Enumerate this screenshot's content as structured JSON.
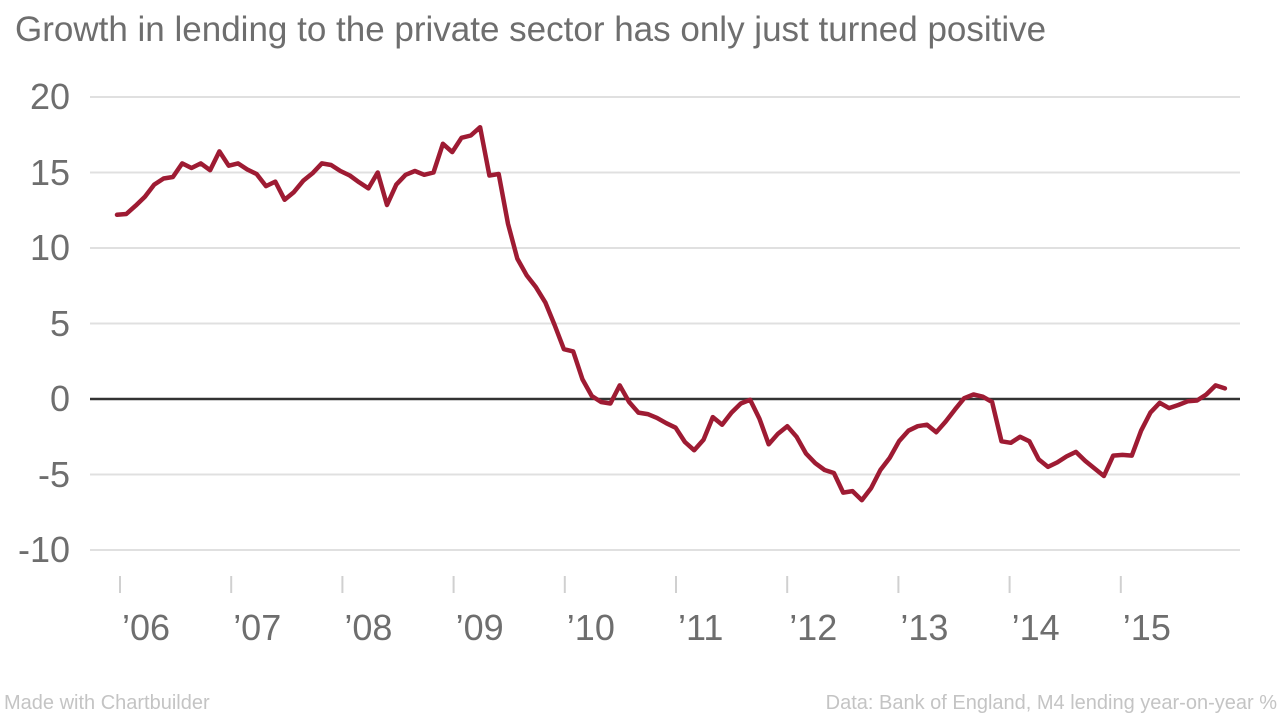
{
  "title": "Growth in lending to the private sector has only just turned positive",
  "footer": {
    "left": "Made with Chartbuilder",
    "right": "Data: Bank of England, M4 lending year-on-year %"
  },
  "colors": {
    "line": "#9e1b33",
    "grid": "#e0e0e0",
    "zero_line": "#333333",
    "tick": "#d0d0d0",
    "text": "#6e6e6e",
    "muted_text": "#c4c4c4",
    "background": "#ffffff"
  },
  "chart_data": {
    "type": "line",
    "title": "Growth in lending to the private sector has only just turned positive",
    "xlabel": "",
    "ylabel": "",
    "x_unit": "month",
    "x_start": "2006-01",
    "x_end": "2015-12",
    "x_tick_labels": [
      "’06",
      "’07",
      "’08",
      "’09",
      "’10",
      "’11",
      "’12",
      "’13",
      "’14",
      "’15"
    ],
    "y_ticks": [
      20,
      15,
      10,
      5,
      0,
      -5,
      -10
    ],
    "ylim": [
      -10,
      20
    ],
    "grid": "horizontal",
    "zero_line": true,
    "legend_position": "none",
    "series": [
      {
        "name": "M4 lending year-on-year %",
        "color": "#9e1b33",
        "values": [
          12.2,
          12.25,
          12.8,
          13.4,
          14.2,
          14.6,
          14.7,
          15.6,
          15.3,
          15.6,
          15.15,
          16.4,
          15.45,
          15.6,
          15.2,
          14.9,
          14.1,
          14.4,
          13.2,
          13.7,
          14.45,
          14.95,
          15.6,
          15.5,
          15.1,
          14.8,
          14.35,
          13.95,
          15.0,
          12.85,
          14.2,
          14.85,
          15.1,
          14.85,
          15.0,
          16.9,
          16.35,
          17.3,
          17.45,
          18.0,
          14.8,
          14.9,
          11.6,
          9.3,
          8.2,
          7.4,
          6.4,
          4.9,
          3.3,
          3.15,
          1.3,
          0.2,
          -0.2,
          -0.3,
          0.9,
          -0.2,
          -0.9,
          -1.0,
          -1.25,
          -1.6,
          -1.9,
          -2.85,
          -3.4,
          -2.7,
          -1.2,
          -1.7,
          -0.9,
          -0.3,
          -0.05,
          -1.3,
          -3.0,
          -2.3,
          -1.8,
          -2.5,
          -3.6,
          -4.25,
          -4.7,
          -4.9,
          -6.2,
          -6.1,
          -6.7,
          -5.9,
          -4.7,
          -3.9,
          -2.8,
          -2.1,
          -1.8,
          -1.7,
          -2.2,
          -1.5,
          -0.7,
          0.05,
          0.3,
          0.15,
          -0.2,
          -2.8,
          -2.9,
          -2.5,
          -2.8,
          -4.0,
          -4.5,
          -4.2,
          -3.8,
          -3.5,
          -4.1,
          -4.6,
          -5.1,
          -3.75,
          -3.7,
          -3.75,
          -2.1,
          -0.9,
          -0.25,
          -0.6,
          -0.4,
          -0.15,
          -0.1,
          0.3,
          0.9,
          0.7
        ]
      }
    ]
  }
}
